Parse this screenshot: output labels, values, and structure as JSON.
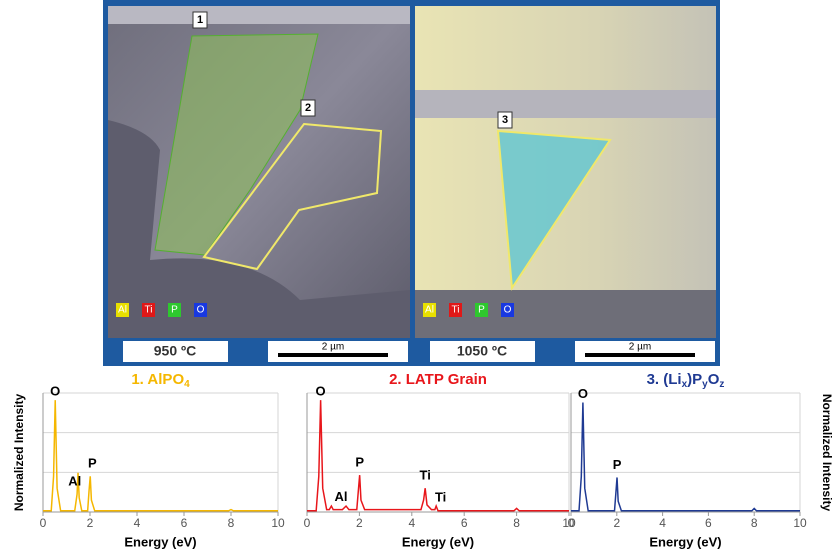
{
  "micrographs": [
    {
      "temperature": "950 ºC",
      "scale": "2 µm",
      "regions": [
        "1",
        "2"
      ],
      "elements": [
        "Al",
        "Ti",
        "P",
        "O"
      ]
    },
    {
      "temperature": "1050 ºC",
      "scale": "2 µm",
      "regions": [
        "3"
      ],
      "elements": [
        "Al",
        "Ti",
        "P",
        "O"
      ]
    }
  ],
  "chart_data": [
    {
      "type": "line",
      "title": [
        {
          "text": "1. AlPO"
        },
        {
          "text": "4",
          "sub": true
        }
      ],
      "xlabel": "Energy (eV)",
      "ylabel": "Normalized Intensity",
      "ylabel_side": "left",
      "xlim": [
        0,
        10
      ],
      "xticks": [
        0,
        2,
        4,
        6,
        8,
        10
      ],
      "ylim": [
        0,
        1
      ],
      "grid": true,
      "series": [
        {
          "color": "#f5b700",
          "x": [
            0,
            0.35,
            0.45,
            0.52,
            0.6,
            0.75,
            1.35,
            1.45,
            1.49,
            1.54,
            1.65,
            1.9,
            1.96,
            2.01,
            2.06,
            2.2,
            7.9,
            8.0,
            8.1,
            10
          ],
          "values": [
            0.01,
            0.01,
            0.3,
            0.94,
            0.2,
            0.01,
            0.01,
            0.15,
            0.33,
            0.12,
            0.01,
            0.01,
            0.18,
            0.3,
            0.1,
            0.01,
            0.01,
            0.02,
            0.01,
            0.01
          ]
        }
      ],
      "annotations": [
        {
          "text": "O",
          "x": 0.52
        },
        {
          "text": "Al",
          "x": 1.35
        },
        {
          "text": "P",
          "x": 2.1
        }
      ]
    },
    {
      "type": "line",
      "title": [
        {
          "text": "2. LATP Grain"
        }
      ],
      "xlabel": "Energy (eV)",
      "xlim": [
        0,
        10
      ],
      "xticks": [
        0,
        2,
        4,
        6,
        8,
        10
      ],
      "ylim": [
        0,
        1
      ],
      "grid": true,
      "series": [
        {
          "color": "#e8161b",
          "x": [
            0,
            0.35,
            0.45,
            0.52,
            0.6,
            0.75,
            0.85,
            0.93,
            1.0,
            1.35,
            1.49,
            1.6,
            1.9,
            1.96,
            2.01,
            2.06,
            2.2,
            4.35,
            4.45,
            4.51,
            4.58,
            4.75,
            4.88,
            4.93,
            5.0,
            7.9,
            8.0,
            8.1,
            10
          ],
          "values": [
            0.01,
            0.01,
            0.3,
            0.94,
            0.2,
            0.02,
            0.02,
            0.05,
            0.02,
            0.02,
            0.05,
            0.02,
            0.02,
            0.18,
            0.31,
            0.1,
            0.02,
            0.02,
            0.1,
            0.2,
            0.06,
            0.02,
            0.02,
            0.05,
            0.01,
            0.01,
            0.03,
            0.01,
            0.01
          ]
        }
      ],
      "annotations": [
        {
          "text": "O",
          "x": 0.52
        },
        {
          "text": "Al",
          "x": 1.3
        },
        {
          "text": "P",
          "x": 2.01
        },
        {
          "text": "Ti",
          "x": 4.51
        },
        {
          "text": "Ti",
          "x": 5.1
        }
      ]
    },
    {
      "type": "line",
      "title": [
        {
          "text": "3. (Li"
        },
        {
          "text": "x",
          "sub": true
        },
        {
          "text": ")P"
        },
        {
          "text": "y",
          "sub": true
        },
        {
          "text": "O"
        },
        {
          "text": "z",
          "sub": true
        }
      ],
      "xlabel": "Energy (eV)",
      "ylabel": "Normalized Intensity",
      "ylabel_side": "right",
      "xlim": [
        0,
        10
      ],
      "xticks": [
        0,
        2,
        4,
        6,
        8,
        10
      ],
      "ylim": [
        0,
        1
      ],
      "grid": true,
      "series": [
        {
          "color": "#1f3a93",
          "x": [
            0,
            0.35,
            0.45,
            0.52,
            0.6,
            0.75,
            1.9,
            1.96,
            2.01,
            2.06,
            2.2,
            7.9,
            8.0,
            8.1,
            10
          ],
          "values": [
            0.01,
            0.01,
            0.3,
            0.92,
            0.2,
            0.01,
            0.01,
            0.16,
            0.29,
            0.09,
            0.01,
            0.01,
            0.03,
            0.01,
            0.01
          ]
        }
      ],
      "annotations": [
        {
          "text": "O",
          "x": 0.52
        },
        {
          "text": "P",
          "x": 2.01
        }
      ]
    }
  ]
}
